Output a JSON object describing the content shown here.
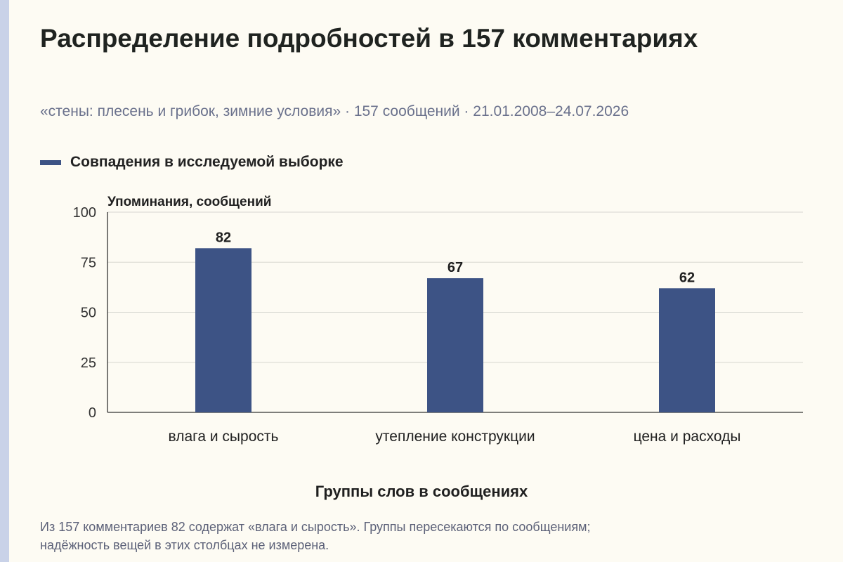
{
  "title": "Распределение подробностей в 157 комментариях",
  "subtitle": "«стены: плесень и грибок, зимние условия» · 157 сообщений · 21.01.2008–24.07.2026",
  "legend": {
    "label": "Совпадения в исследуемой выборке",
    "color": "#3d5385"
  },
  "footnote": {
    "line1": "Из 157 комментариев 82 содержат «влага и сырость». Группы пересекаются по сообщениям;",
    "line2": "надёжность вещей в этих столбцах не измерена."
  },
  "chart_data": {
    "type": "bar",
    "title": "Распределение подробностей в 157 комментариях",
    "categories": [
      "влага и сырость",
      "утепление конструкции",
      "цена и расходы"
    ],
    "series": [
      {
        "name": "Совпадения в исследуемой выборке",
        "values": [
          82,
          67,
          62
        ]
      }
    ],
    "xlabel": "Группы слов в сообщениях",
    "ylabel": "Упоминания, сообщений",
    "ylim": [
      0,
      100
    ],
    "yticks": [
      0,
      25,
      50,
      75,
      100
    ],
    "grid": true,
    "legend_position": "top-left",
    "bar_color": "#3d5385"
  }
}
